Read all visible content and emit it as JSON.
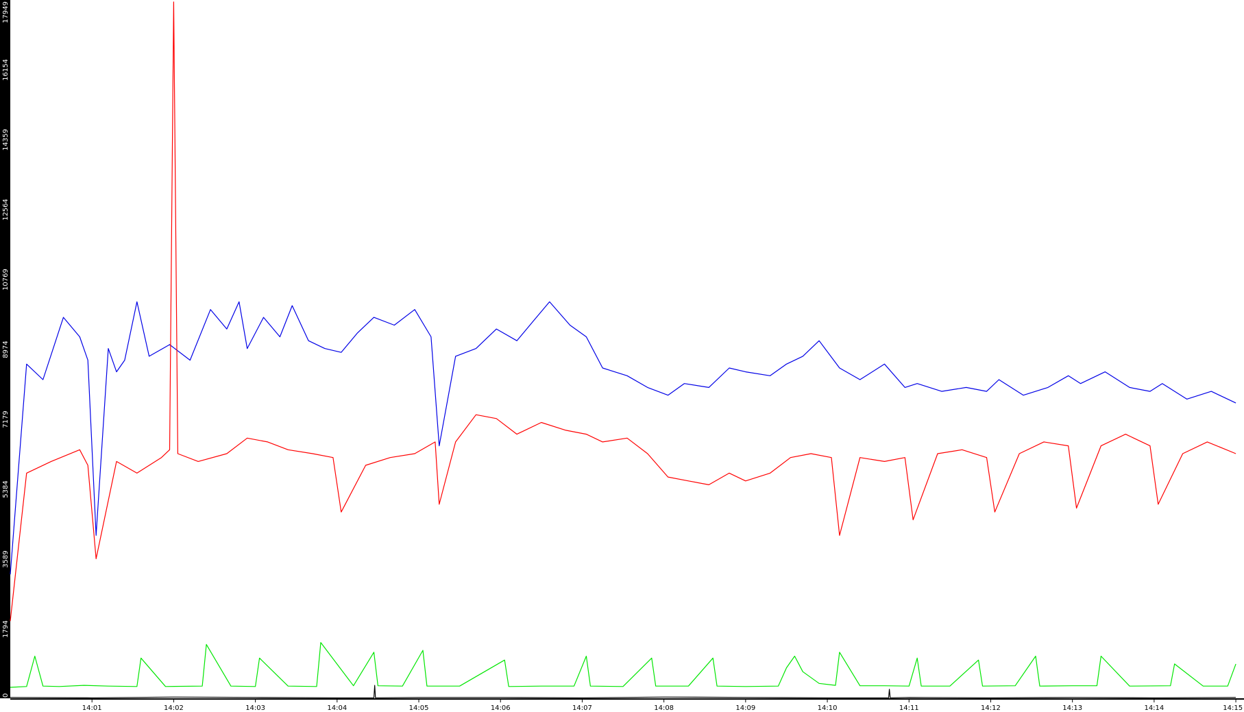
{
  "colors": {
    "background": "#ffffff",
    "axis_strip": "#000000",
    "series_blue": "#0000e6",
    "series_red": "#ff0000",
    "series_green": "#00e600",
    "series_black": "#000000"
  },
  "chart_data": {
    "type": "line",
    "title": "",
    "xlabel": "",
    "ylabel": "",
    "x_ticks": [
      "14:01",
      "14:02",
      "14:03",
      "14:04",
      "14:05",
      "14:06",
      "14:07",
      "14:08",
      "14:09",
      "14:10",
      "14:11",
      "14:12",
      "14:13",
      "14:14",
      "14:15"
    ],
    "xlim": [
      "14:00.00",
      "14:15.10"
    ],
    "y_ticks": [
      "0",
      "1794",
      "3589",
      "5384",
      "7179",
      "8974",
      "10769",
      "12564",
      "14359",
      "16154",
      "17949"
    ],
    "ylim": [
      0,
      17949
    ],
    "grid": false,
    "legend": "none",
    "series": [
      {
        "color": "blue",
        "x": [
          "14:00.00",
          "14:00.20",
          "14:00.40",
          "14:00.65",
          "14:00.85",
          "14:00.95",
          "14:01.05",
          "14:01.20",
          "14:01.30",
          "14:01.40",
          "14:01.55",
          "14:01.70",
          "14:01.95",
          "14:02.20",
          "14:02.45",
          "14:02.65",
          "14:02.80",
          "14:02.90",
          "14:03.10",
          "14:03.30",
          "14:03.45",
          "14:03.65",
          "14:03.85",
          "14:04.05",
          "14:04.25",
          "14:04.45",
          "14:04.70",
          "14:04.95",
          "14:05.15",
          "14:05.25",
          "14:05.45",
          "14:05.70",
          "14:05.95",
          "14:06.20",
          "14:06.40",
          "14:06.60",
          "14:06.85",
          "14:07.05",
          "14:07.25",
          "14:07.55",
          "14:07.80",
          "14:08.05",
          "14:08.25",
          "14:08.55",
          "14:08.80",
          "14:09.00",
          "14:09.30",
          "14:09.50",
          "14:09.70",
          "14:09.90",
          "14:10.15",
          "14:10.40",
          "14:10.70",
          "14:10.95",
          "14:11.10",
          "14:11.40",
          "14:11.70",
          "14:11.95",
          "14:12.10",
          "14:12.40",
          "14:12.70",
          "14:12.95",
          "14:13.10",
          "14:13.40",
          "14:13.70",
          "14:13.95",
          "14:14.10",
          "14:14.40",
          "14:14.70",
          "14:15.00"
        ],
        "y": [
          3200,
          8600,
          8200,
          9800,
          9300,
          8700,
          4200,
          9000,
          8400,
          8700,
          10200,
          8800,
          9100,
          8700,
          10000,
          9500,
          10200,
          9000,
          9800,
          9300,
          10100,
          9200,
          9000,
          8900,
          9400,
          9800,
          9600,
          10000,
          9300,
          6500,
          8800,
          9000,
          9500,
          9200,
          9700,
          10200,
          9600,
          9300,
          8500,
          8300,
          8000,
          7800,
          8100,
          8000,
          8500,
          8400,
          8300,
          8600,
          8800,
          9200,
          8500,
          8200,
          8600,
          8000,
          8100,
          7900,
          8000,
          7900,
          8200,
          7800,
          8000,
          8300,
          8100,
          8400,
          8000,
          7900,
          8100,
          7700,
          7900,
          7600
        ]
      },
      {
        "color": "red",
        "x": [
          "14:00.00",
          "14:00.20",
          "14:00.50",
          "14:00.85",
          "14:00.95",
          "14:01.05",
          "14:01.30",
          "14:01.55",
          "14:01.85",
          "14:01.95",
          "14:02.00",
          "14:02.05",
          "14:02.30",
          "14:02.65",
          "14:02.90",
          "14:03.15",
          "14:03.40",
          "14:03.70",
          "14:03.95",
          "14:04.05",
          "14:04.35",
          "14:04.65",
          "14:04.95",
          "14:05.20",
          "14:05.25",
          "14:05.45",
          "14:05.70",
          "14:05.95",
          "14:06.20",
          "14:06.50",
          "14:06.80",
          "14:07.05",
          "14:07.25",
          "14:07.55",
          "14:07.80",
          "14:08.05",
          "14:08.30",
          "14:08.55",
          "14:08.80",
          "14:09.00",
          "14:09.30",
          "14:09.55",
          "14:09.80",
          "14:10.05",
          "14:10.15",
          "14:10.40",
          "14:10.70",
          "14:10.95",
          "14:11.05",
          "14:11.35",
          "14:11.65",
          "14:11.95",
          "14:12.05",
          "14:12.35",
          "14:12.65",
          "14:12.95",
          "14:13.05",
          "14:13.35",
          "14:13.65",
          "14:13.95",
          "14:14.05",
          "14:14.35",
          "14:14.65",
          "14:15.00"
        ],
        "y": [
          2000,
          5800,
          6100,
          6400,
          6000,
          3600,
          6100,
          5800,
          6200,
          6400,
          17900,
          6300,
          6100,
          6300,
          6700,
          6600,
          6400,
          6300,
          6200,
          4800,
          6000,
          6200,
          6300,
          6600,
          5000,
          6600,
          7300,
          7200,
          6800,
          7100,
          6900,
          6800,
          6600,
          6700,
          6300,
          5700,
          5600,
          5500,
          5800,
          5600,
          5800,
          6200,
          6300,
          6200,
          4200,
          6200,
          6100,
          6200,
          4600,
          6300,
          6400,
          6200,
          4800,
          6300,
          6600,
          6500,
          4900,
          6500,
          6800,
          6500,
          5000,
          6300,
          6600,
          6300
        ]
      },
      {
        "color": "green",
        "x": [
          "14:00.00",
          "14:00.20",
          "14:00.30",
          "14:00.40",
          "14:00.60",
          "14:00.90",
          "14:01.20",
          "14:01.55",
          "14:01.60",
          "14:01.90",
          "14:02.35",
          "14:02.40",
          "14:02.70",
          "14:03.00",
          "14:03.05",
          "14:03.40",
          "14:03.75",
          "14:03.80",
          "14:04.20",
          "14:04.45",
          "14:04.50",
          "14:04.80",
          "14:05.05",
          "14:05.10",
          "14:05.50",
          "14:06.05",
          "14:06.10",
          "14:06.50",
          "14:06.90",
          "14:07.05",
          "14:07.10",
          "14:07.50",
          "14:07.85",
          "14:07.90",
          "14:08.30",
          "14:08.60",
          "14:08.65",
          "14:09.00",
          "14:09.40",
          "14:09.50",
          "14:09.60",
          "14:09.70",
          "14:09.90",
          "14:10.10",
          "14:10.15",
          "14:10.40",
          "14:10.70",
          "14:11.00",
          "14:11.10",
          "14:11.15",
          "14:11.50",
          "14:11.85",
          "14:11.90",
          "14:12.30",
          "14:12.55",
          "14:12.60",
          "14:13.00",
          "14:13.30",
          "14:13.35",
          "14:13.70",
          "14:14.20",
          "14:14.25",
          "14:14.60",
          "14:14.90",
          "14:15.00"
        ],
        "y": [
          300,
          320,
          1100,
          330,
          320,
          350,
          330,
          320,
          1050,
          320,
          330,
          1400,
          330,
          320,
          1050,
          330,
          320,
          1450,
          340,
          1200,
          340,
          330,
          1250,
          330,
          330,
          1000,
          320,
          330,
          330,
          1100,
          330,
          320,
          1050,
          330,
          330,
          1050,
          330,
          320,
          330,
          800,
          1100,
          700,
          400,
          350,
          1200,
          340,
          340,
          330,
          1050,
          330,
          330,
          1000,
          330,
          340,
          1100,
          330,
          340,
          340,
          1100,
          330,
          340,
          900,
          330,
          330,
          900
        ]
      },
      {
        "color": "black",
        "x": [
          "14:00.00",
          "14:01.00",
          "14:02.00",
          "14:03.00",
          "14:04.00",
          "14:04.45",
          "14:04.46",
          "14:04.47",
          "14:05.00",
          "14:06.00",
          "14:07.00",
          "14:08.00",
          "14:09.00",
          "14:10.00",
          "14:10.75",
          "14:10.76",
          "14:10.77",
          "14:11.00",
          "14:12.00",
          "14:13.00",
          "14:14.00",
          "14:15.00"
        ],
        "y": [
          40,
          30,
          50,
          40,
          30,
          30,
          350,
          30,
          40,
          40,
          30,
          50,
          40,
          30,
          30,
          250,
          30,
          40,
          30,
          40,
          30,
          40
        ]
      }
    ]
  }
}
